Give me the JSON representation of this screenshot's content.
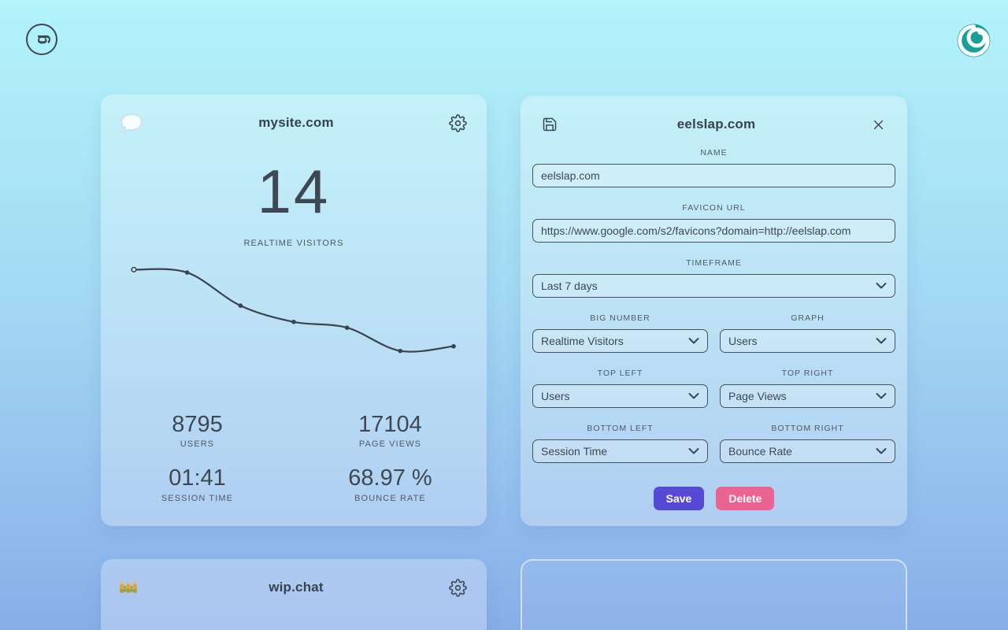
{
  "header": {
    "app_logo_letter": "g"
  },
  "icons": {
    "app_logo": "rotated-g-in-circle",
    "account_logo": "teal-spiral-disc",
    "site_favicon": "speech-bubble",
    "settings": "gear",
    "save_header": "floppy-disk",
    "close": "x",
    "select_chevron": "chevron-down",
    "wip_favicon": "construction-fence"
  },
  "colors": {
    "background_top": "#b2f4fa",
    "background_bottom": "#88aee9",
    "text_primary": "#3d4853",
    "label_gray": "#4e5a66",
    "save_button": "#5649d6",
    "delete_button": "#eb6390",
    "account_teal": "#17a096",
    "chart_line": "#3a444e"
  },
  "site_card": {
    "title": "mysite.com",
    "big_number": {
      "value": "14",
      "label": "REALTIME VISITORS"
    },
    "stats": [
      {
        "value": "8795",
        "label": "USERS"
      },
      {
        "value": "17104",
        "label": "PAGE VIEWS"
      },
      {
        "value": "01:41",
        "label": "SESSION TIME"
      },
      {
        "value": "68.97 %",
        "label": "BOUNCE RATE"
      }
    ]
  },
  "chart_data": {
    "type": "line",
    "title": "",
    "xlabel": "",
    "ylabel": "",
    "timeframe": "Last 7 days",
    "x": [
      1,
      2,
      3,
      4,
      5,
      6,
      7
    ],
    "series": [
      {
        "name": "Users",
        "values": [
          1600,
          1575,
          1290,
          1150,
          1100,
          900,
          940
        ]
      }
    ],
    "values_estimated_from_pixels": true,
    "ylim": [
      850,
      1650
    ],
    "grid": false,
    "legend": false,
    "axes_hidden": true,
    "line_color": "#3a444e"
  },
  "settings_card": {
    "title": "eelslap.com",
    "name_field": {
      "label": "NAME",
      "value": "eelslap.com"
    },
    "favicon_field": {
      "label": "FAVICON URL",
      "value": "https://www.google.com/s2/favicons?domain=http://eelslap.com"
    },
    "timeframe_field": {
      "label": "TIMEFRAME",
      "value": "Last 7 days"
    },
    "pairs": [
      {
        "left": {
          "label": "BIG NUMBER",
          "value": "Realtime Visitors"
        },
        "right": {
          "label": "GRAPH",
          "value": "Users"
        }
      },
      {
        "left": {
          "label": "TOP LEFT",
          "value": "Users"
        },
        "right": {
          "label": "TOP RIGHT",
          "value": "Page Views"
        }
      },
      {
        "left": {
          "label": "BOTTOM LEFT",
          "value": "Session Time"
        },
        "right": {
          "label": "BOTTOM RIGHT",
          "value": "Bounce Rate"
        }
      }
    ],
    "buttons": {
      "save": "Save",
      "delete": "Delete"
    }
  },
  "wip_card": {
    "title": "wip.chat"
  }
}
